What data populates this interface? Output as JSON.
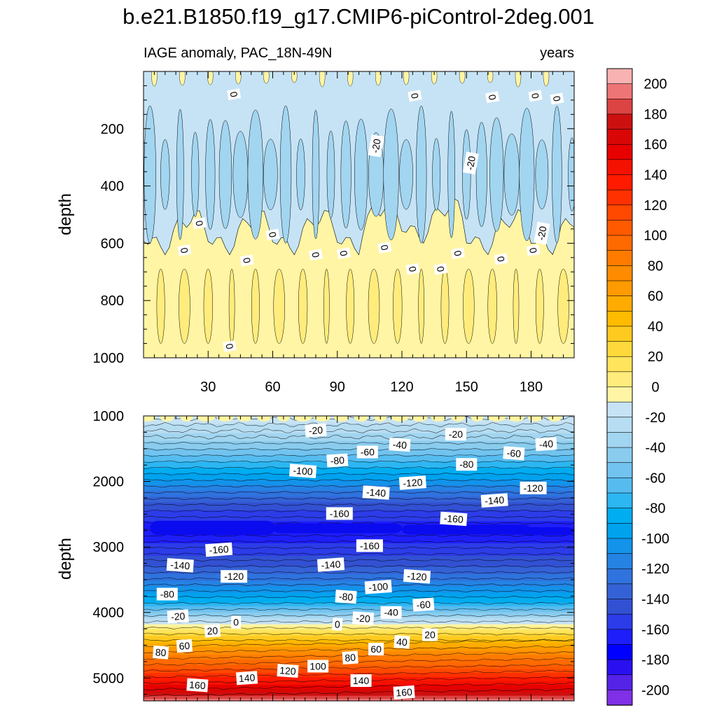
{
  "figure": {
    "title": "b.e21.B1850.f19_g17.CMIP6-piControl-2deg.001",
    "left_subtitle": "IAGE anomaly, PAC_18N-49N",
    "right_subtitle": "years"
  },
  "chart_data": [
    {
      "type": "heatmap",
      "name": "upper-panel",
      "xlabel": "",
      "ylabel": "depth",
      "xlim": [
        0,
        200
      ],
      "ylim": [
        1000,
        0
      ],
      "x_ticks": [
        30,
        60,
        90,
        120,
        150,
        180
      ],
      "y_ticks": [
        200,
        400,
        600,
        800,
        1000
      ],
      "contour_interval": 10,
      "contour_labels": [
        {
          "text": "0",
          "x": 42,
          "y": 80
        },
        {
          "text": "0",
          "x": 126,
          "y": 85
        },
        {
          "text": "0",
          "x": 162,
          "y": 90
        },
        {
          "text": "0",
          "x": 182,
          "y": 85
        },
        {
          "text": "0",
          "x": 192,
          "y": 95
        },
        {
          "text": "-20",
          "x": 108,
          "y": 260
        },
        {
          "text": "-20",
          "x": 152,
          "y": 320
        },
        {
          "text": "-20",
          "x": 185,
          "y": 565
        },
        {
          "text": "0",
          "x": 26,
          "y": 530
        },
        {
          "text": "0",
          "x": 60,
          "y": 570
        },
        {
          "text": "0",
          "x": 19,
          "y": 625
        },
        {
          "text": "0",
          "x": 80,
          "y": 640
        },
        {
          "text": "0",
          "x": 93,
          "y": 635
        },
        {
          "text": "0",
          "x": 112,
          "y": 615
        },
        {
          "text": "0",
          "x": 146,
          "y": 635
        },
        {
          "text": "0",
          "x": 48,
          "y": 660
        },
        {
          "text": "0",
          "x": 125,
          "y": 690
        },
        {
          "text": "0",
          "x": 138,
          "y": 690
        },
        {
          "text": "0",
          "x": 166,
          "y": 655
        },
        {
          "text": "0",
          "x": 181,
          "y": 625
        },
        {
          "text": "0",
          "x": 40,
          "y": 960
        }
      ]
    },
    {
      "type": "heatmap",
      "name": "lower-panel",
      "xlabel": "",
      "ylabel": "depth",
      "xlim": [
        0,
        200
      ],
      "ylim": [
        5350,
        1000
      ],
      "y_ticks": [
        1000,
        2000,
        3000,
        4000,
        5000
      ],
      "contour_interval": 10,
      "contour_labels": [
        {
          "text": "-20",
          "x": 80,
          "y": 1220
        },
        {
          "text": "-20",
          "x": 145,
          "y": 1280
        },
        {
          "text": "-40",
          "x": 119,
          "y": 1440
        },
        {
          "text": "-40",
          "x": 187,
          "y": 1430
        },
        {
          "text": "-60",
          "x": 104,
          "y": 1550
        },
        {
          "text": "-60",
          "x": 172,
          "y": 1570
        },
        {
          "text": "-80",
          "x": 90,
          "y": 1680
        },
        {
          "text": "-80",
          "x": 150,
          "y": 1740
        },
        {
          "text": "-100",
          "x": 74,
          "y": 1840
        },
        {
          "text": "-120",
          "x": 125,
          "y": 2020
        },
        {
          "text": "-120",
          "x": 181,
          "y": 2100
        },
        {
          "text": "-140",
          "x": 108,
          "y": 2170
        },
        {
          "text": "-140",
          "x": 163,
          "y": 2290
        },
        {
          "text": "-160",
          "x": 91,
          "y": 2490
        },
        {
          "text": "-160",
          "x": 144,
          "y": 2570
        },
        {
          "text": "-160",
          "x": 35,
          "y": 3040
        },
        {
          "text": "-160",
          "x": 105,
          "y": 2980
        },
        {
          "text": "-140",
          "x": 17,
          "y": 3280
        },
        {
          "text": "-140",
          "x": 87,
          "y": 3270
        },
        {
          "text": "-120",
          "x": 42,
          "y": 3450
        },
        {
          "text": "-120",
          "x": 127,
          "y": 3450
        },
        {
          "text": "-100",
          "x": 109,
          "y": 3610
        },
        {
          "text": "-80",
          "x": 11,
          "y": 3720
        },
        {
          "text": "-80",
          "x": 94,
          "y": 3760
        },
        {
          "text": "-60",
          "x": 130,
          "y": 3880
        },
        {
          "text": "-40",
          "x": 115,
          "y": 4000
        },
        {
          "text": "-20",
          "x": 102,
          "y": 4090
        },
        {
          "text": "-20",
          "x": 16,
          "y": 4060
        },
        {
          "text": "0",
          "x": 43,
          "y": 4150
        },
        {
          "text": "0",
          "x": 90,
          "y": 4180
        },
        {
          "text": "20",
          "x": 32,
          "y": 4280
        },
        {
          "text": "20",
          "x": 133,
          "y": 4340
        },
        {
          "text": "40",
          "x": 120,
          "y": 4450
        },
        {
          "text": "60",
          "x": 19,
          "y": 4510
        },
        {
          "text": "60",
          "x": 108,
          "y": 4560
        },
        {
          "text": "80",
          "x": 8,
          "y": 4610
        },
        {
          "text": "80",
          "x": 96,
          "y": 4690
        },
        {
          "text": "100",
          "x": 81,
          "y": 4820
        },
        {
          "text": "120",
          "x": 67,
          "y": 4890
        },
        {
          "text": "140",
          "x": 48,
          "y": 5000
        },
        {
          "text": "140",
          "x": 101,
          "y": 5040
        },
        {
          "text": "160",
          "x": 25,
          "y": 5110
        },
        {
          "text": "160",
          "x": 121,
          "y": 5220
        }
      ]
    }
  ],
  "colorbar": {
    "min": -210,
    "max": 210,
    "step": 10,
    "labels": [
      "200",
      "180",
      "160",
      "140",
      "120",
      "100",
      "80",
      "60",
      "40",
      "20",
      "0",
      "-20",
      "-40",
      "-60",
      "-80",
      "-100",
      "-120",
      "-140",
      "-160",
      "-180",
      "-200"
    ],
    "colors_top_down": [
      "#F9B2B2",
      "#EE7575",
      "#DC4343",
      "#CC1010",
      "#DA0707",
      "#E80000",
      "#F51100",
      "#FF1A00",
      "#FF3100",
      "#FF4800",
      "#FF5A00",
      "#FF6A00",
      "#FF7B00",
      "#FF8B00",
      "#FF9A00",
      "#FFAB00",
      "#FFBB00",
      "#FFCA20",
      "#FFD93C",
      "#FFE45C",
      "#FFEC7C",
      "#FFF5A4",
      "#C6E3F5",
      "#B7DDF2",
      "#A2D5F0",
      "#8ACCEE",
      "#72C3EF",
      "#56BCF0",
      "#2CB6F2",
      "#00ADF0",
      "#00A2EE",
      "#1393EA",
      "#2583E4",
      "#2F73DE",
      "#3462D6",
      "#3251D2",
      "#2C3CE8",
      "#1E1EFA",
      "#0000FF",
      "#2A10F0",
      "#5522E8",
      "#8030E6"
    ]
  }
}
